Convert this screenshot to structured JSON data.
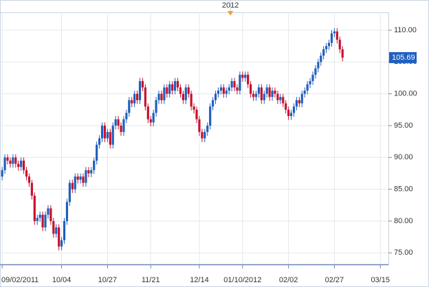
{
  "chart_data": {
    "type": "candlestick",
    "up_color": "#1f5fbf",
    "down_color": "#c8102e",
    "ylim": [
      73.2,
      112.8
    ],
    "yticks": [
      {
        "value": 75,
        "label": "75.00"
      },
      {
        "value": 80,
        "label": "80.00"
      },
      {
        "value": 85,
        "label": "85.00"
      },
      {
        "value": 90,
        "label": "90.00"
      },
      {
        "value": 95,
        "label": "95.00"
      },
      {
        "value": 100,
        "label": "100.00"
      },
      {
        "value": 105,
        "label": "105.00"
      },
      {
        "value": 110,
        "label": "110.00"
      }
    ],
    "xlim": [
      -0.8,
      143
    ],
    "xticks": [
      {
        "value": 0,
        "label": "09/02/2011"
      },
      {
        "value": 22,
        "label": "10/04"
      },
      {
        "value": 39,
        "label": "10/27"
      },
      {
        "value": 55,
        "label": "11/21"
      },
      {
        "value": 73,
        "label": "12/14"
      },
      {
        "value": 89,
        "label": "01/10/2012"
      },
      {
        "value": 106,
        "label": "02/02"
      },
      {
        "value": 123,
        "label": "02/27"
      },
      {
        "value": 140,
        "label": "03/15"
      }
    ],
    "year_marker": {
      "value": 84.5,
      "label": "2012"
    },
    "grid": true,
    "candles": [
      [
        87,
        88.5,
        86.4,
        88
      ],
      [
        88,
        90.5,
        87.4,
        90
      ],
      [
        90,
        90.5,
        88.9,
        89.5
      ],
      [
        89.5,
        90,
        88.4,
        89
      ],
      [
        89,
        90.5,
        88.4,
        90
      ],
      [
        90,
        90.5,
        88.4,
        89
      ],
      [
        89,
        89.5,
        87.9,
        88.5
      ],
      [
        88.5,
        90,
        87.9,
        89.5
      ],
      [
        89.5,
        90,
        87.4,
        88
      ],
      [
        88,
        88.5,
        86.4,
        87
      ],
      [
        87,
        87.5,
        85.4,
        86
      ],
      [
        86,
        86.5,
        83.4,
        84
      ],
      [
        84,
        84.5,
        79.4,
        80
      ],
      [
        80,
        81,
        79.4,
        80.5
      ],
      [
        80.5,
        81.5,
        79.9,
        81
      ],
      [
        81,
        81.5,
        78.4,
        79
      ],
      [
        79,
        81.5,
        78.4,
        81
      ],
      [
        81,
        82.5,
        80.4,
        82
      ],
      [
        82,
        82.5,
        79.4,
        80
      ],
      [
        80,
        80.5,
        77.4,
        78
      ],
      [
        78,
        79.5,
        77.4,
        79
      ],
      [
        79,
        79.5,
        75.4,
        76
      ],
      [
        76,
        77.5,
        75.4,
        77
      ],
      [
        77,
        80.5,
        76.4,
        80
      ],
      [
        80,
        83.5,
        79.4,
        83
      ],
      [
        83,
        86.5,
        82.4,
        86
      ],
      [
        86,
        86.5,
        84.4,
        85
      ],
      [
        85,
        87.5,
        84.4,
        87
      ],
      [
        87,
        87.5,
        85.9,
        86.5
      ],
      [
        86.5,
        87.5,
        85.9,
        87
      ],
      [
        87,
        87.5,
        85.4,
        86
      ],
      [
        86,
        88.5,
        85.4,
        88
      ],
      [
        88,
        88.5,
        86.9,
        87.5
      ],
      [
        87.5,
        88.5,
        86.9,
        88
      ],
      [
        88,
        90,
        87.4,
        89.5
      ],
      [
        89.5,
        92.5,
        88.9,
        92
      ],
      [
        92,
        93.5,
        91.4,
        93
      ],
      [
        93,
        95.5,
        92.4,
        95
      ],
      [
        95,
        95.5,
        92.4,
        93
      ],
      [
        93,
        94.5,
        92.4,
        94
      ],
      [
        94,
        94.5,
        91.4,
        92
      ],
      [
        92,
        95.5,
        91.4,
        95
      ],
      [
        95,
        96.5,
        94.4,
        96
      ],
      [
        96,
        96.5,
        94.4,
        95
      ],
      [
        95,
        95.5,
        93.4,
        94
      ],
      [
        94,
        96.5,
        93.4,
        96
      ],
      [
        96,
        97.5,
        95.4,
        97
      ],
      [
        97,
        99.5,
        96.4,
        99
      ],
      [
        99,
        99.5,
        97.9,
        98.5
      ],
      [
        98.5,
        100.5,
        97.9,
        100
      ],
      [
        100,
        100.5,
        98.4,
        99
      ],
      [
        99,
        102.5,
        98.4,
        102
      ],
      [
        102,
        102.5,
        100.4,
        101
      ],
      [
        101,
        101.5,
        97.4,
        98
      ],
      [
        98,
        98.5,
        95.4,
        96
      ],
      [
        96,
        96.5,
        94.9,
        95.5
      ],
      [
        95.5,
        97.5,
        94.9,
        97
      ],
      [
        97,
        99.5,
        96.4,
        99
      ],
      [
        99,
        100.5,
        98.4,
        100
      ],
      [
        100,
        100.5,
        98.4,
        99
      ],
      [
        99,
        101.5,
        98.4,
        101
      ],
      [
        101,
        101.5,
        99.4,
        100
      ],
      [
        100,
        102,
        99.4,
        101.5
      ],
      [
        101.5,
        102,
        99.9,
        100.5
      ],
      [
        100.5,
        102.5,
        99.9,
        102
      ],
      [
        102,
        102.5,
        100.4,
        101
      ],
      [
        101,
        101.5,
        99.4,
        100
      ],
      [
        100,
        100.5,
        98.4,
        99
      ],
      [
        99,
        101.5,
        98.4,
        101
      ],
      [
        101,
        101.5,
        99.4,
        100
      ],
      [
        100,
        100.5,
        97.4,
        98
      ],
      [
        98,
        98.5,
        96.9,
        97.5
      ],
      [
        97.5,
        98,
        95.4,
        96
      ],
      [
        96,
        96.5,
        93.4,
        94
      ],
      [
        94,
        94.5,
        92.4,
        93
      ],
      [
        93,
        94.5,
        92.4,
        94
      ],
      [
        94,
        95.5,
        93.4,
        95
      ],
      [
        95,
        98.5,
        94.4,
        98
      ],
      [
        98,
        99.5,
        97.4,
        99
      ],
      [
        99,
        100.5,
        98.4,
        100
      ],
      [
        100,
        101,
        99.4,
        100.5
      ],
      [
        100.5,
        101.5,
        99.9,
        101
      ],
      [
        101,
        101.5,
        99.4,
        100
      ],
      [
        100,
        101,
        99.4,
        100.5
      ],
      [
        100.5,
        101.5,
        99.9,
        101
      ],
      [
        101,
        102.5,
        100.4,
        102
      ],
      [
        102,
        102.5,
        100.4,
        101
      ],
      [
        101,
        101.5,
        99.9,
        100.5
      ],
      [
        100.5,
        103.5,
        99.9,
        103
      ],
      [
        103,
        103.5,
        101.9,
        102.5
      ],
      [
        102.5,
        103.5,
        101.9,
        103
      ],
      [
        103,
        103.5,
        100.9,
        101.5
      ],
      [
        101.5,
        102,
        99.4,
        100
      ],
      [
        100,
        100.5,
        98.9,
        99.5
      ],
      [
        99.5,
        100.5,
        98.9,
        100
      ],
      [
        100,
        101.5,
        99.4,
        101
      ],
      [
        101,
        101.5,
        98.4,
        99
      ],
      [
        99,
        100.5,
        98.4,
        100
      ],
      [
        100,
        101.5,
        99.4,
        101
      ],
      [
        101,
        101.5,
        98.9,
        99.5
      ],
      [
        99.5,
        101,
        98.9,
        100.5
      ],
      [
        100.5,
        101,
        99.4,
        100
      ],
      [
        100,
        100.5,
        98.4,
        99
      ],
      [
        99,
        100,
        98.4,
        99.5
      ],
      [
        99.5,
        100,
        97.9,
        98.5
      ],
      [
        98.5,
        99,
        96.9,
        97.5
      ],
      [
        97.5,
        98,
        95.9,
        96.5
      ],
      [
        96.5,
        97.5,
        95.9,
        97
      ],
      [
        97,
        98.5,
        96.4,
        98
      ],
      [
        98,
        99.5,
        97.4,
        99
      ],
      [
        99,
        99.5,
        97.9,
        98.5
      ],
      [
        98.5,
        100.5,
        97.9,
        100
      ],
      [
        100,
        101,
        99.4,
        100.5
      ],
      [
        100.5,
        102,
        99.9,
        101.5
      ],
      [
        101.5,
        102.5,
        100.9,
        102
      ],
      [
        102,
        103.5,
        101.4,
        103
      ],
      [
        103,
        104.5,
        102.4,
        104
      ],
      [
        104,
        105.5,
        103.4,
        105
      ],
      [
        105,
        106.5,
        104.4,
        106
      ],
      [
        106,
        107.5,
        105.4,
        107
      ],
      [
        107,
        108,
        106.4,
        107.5
      ],
      [
        107.5,
        108.5,
        106.9,
        108
      ],
      [
        108,
        110,
        107.4,
        109.5
      ],
      [
        109.5,
        110.3,
        108.9,
        109.8
      ],
      [
        109.8,
        110.3,
        107.9,
        108.5
      ],
      [
        108.5,
        109,
        106.4,
        107
      ],
      [
        107,
        107.5,
        105.1,
        105.69
      ]
    ]
  }
}
